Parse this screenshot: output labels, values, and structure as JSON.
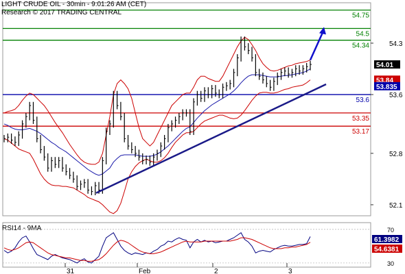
{
  "header": {
    "title": "LIGHT CRUDE OIL - 30min - 9:01:26 AM (CET)",
    "copyright": "Research © 2017 TRADING CENTRAL"
  },
  "rsi": {
    "title": "RSI14 - 9MA",
    "value_label": "61.3982",
    "ma_label": "54.6381"
  },
  "chart_data": {
    "type": "line",
    "instrument": "LIGHT CRUDE OIL",
    "timeframe": "30min",
    "y_ticks": [
      "54.3",
      "53.6",
      "52.8",
      "52.1"
    ],
    "x_ticks": [
      "31",
      "Feb",
      "2",
      "3"
    ],
    "ylim": [
      51.95,
      54.85
    ],
    "levels": [
      {
        "value": 54.75,
        "label": "54.75",
        "color": "#008000"
      },
      {
        "value": 54.5,
        "label": "54.5",
        "color": "#008000"
      },
      {
        "value": 54.34,
        "label": "54.34",
        "color": "#008000"
      },
      {
        "value": 53.6,
        "label": "53.6",
        "color": "#0000aa"
      },
      {
        "value": 53.35,
        "label": "53.35",
        "color": "#cc0000"
      },
      {
        "value": 53.17,
        "label": "53.17",
        "color": "#cc0000"
      }
    ],
    "price_tags": [
      {
        "value": 54.01,
        "label": "54.01",
        "bg": "#000000",
        "fg": "#ffffff"
      },
      {
        "value": 53.84,
        "label": "53.84",
        "bg": "#cc0000",
        "fg": "#ffffff"
      },
      {
        "value": 53.835,
        "label": "53.835",
        "bg": "#0000aa",
        "fg": "#ffffff"
      }
    ],
    "trendline": {
      "start": 52.26,
      "end": 53.74
    },
    "forecast_arrow": {
      "from": 54.07,
      "to": 54.52
    },
    "series": [
      {
        "kind": "price",
        "color": "#000000",
        "values": [
          53.0,
          53.02,
          52.98,
          52.95,
          53.05,
          53.2,
          53.3,
          53.45,
          53.25,
          53.0,
          52.85,
          52.75,
          52.6,
          52.7,
          52.65,
          52.7,
          52.6,
          52.55,
          52.5,
          52.45,
          52.35,
          52.38,
          52.4,
          52.3,
          52.28,
          52.36,
          52.3,
          52.7,
          53.1,
          53.2,
          53.6,
          53.45,
          53.3,
          53.0,
          52.9,
          52.85,
          52.8,
          52.75,
          52.7,
          52.72,
          52.68,
          52.75,
          52.8,
          52.9,
          53.0,
          53.15,
          53.2,
          53.25,
          53.3,
          53.35,
          53.35,
          53.1,
          53.5,
          53.6,
          53.55,
          53.65,
          53.6,
          53.68,
          53.62,
          53.6,
          53.7,
          53.72,
          53.75,
          53.9,
          54.1,
          54.34,
          54.25,
          54.2,
          54.1,
          53.9,
          53.85,
          53.8,
          53.75,
          53.7,
          53.78,
          53.85,
          53.9,
          53.92,
          53.88,
          53.9,
          53.95,
          53.92,
          53.95,
          53.98,
          54.01
        ]
      },
      {
        "kind": "ma",
        "color": "#1a1aaa",
        "values": [
          53.2,
          53.18,
          53.15,
          53.13,
          53.12,
          53.12,
          53.13,
          53.14,
          53.12,
          53.1,
          53.07,
          53.03,
          52.99,
          52.95,
          52.92,
          52.88,
          52.85,
          52.82,
          52.78,
          52.74,
          52.7,
          52.66,
          52.62,
          52.58,
          52.55,
          52.52,
          52.5,
          52.52,
          52.56,
          52.6,
          52.68,
          52.73,
          52.77,
          52.78,
          52.78,
          52.78,
          52.78,
          52.77,
          52.76,
          52.76,
          52.76,
          52.77,
          52.79,
          52.82,
          52.86,
          52.9,
          52.95,
          53.0,
          53.05,
          53.1,
          53.14,
          53.16,
          53.22,
          53.28,
          53.33,
          53.38,
          53.42,
          53.46,
          53.49,
          53.52,
          53.55,
          53.58,
          53.61,
          53.65,
          53.7,
          53.76,
          53.81,
          53.85,
          53.87,
          53.87,
          53.87,
          53.86,
          53.85,
          53.84,
          53.84,
          53.84,
          53.85,
          53.86,
          53.86,
          53.87,
          53.88,
          53.89,
          53.9,
          53.92,
          53.95
        ]
      },
      {
        "kind": "band_upper",
        "color": "#cc0000",
        "values": [
          53.35,
          53.37,
          53.38,
          53.4,
          53.45,
          53.52,
          53.58,
          53.62,
          53.6,
          53.55,
          53.5,
          53.45,
          53.38,
          53.3,
          53.22,
          53.15,
          53.08,
          53.0,
          52.92,
          52.85,
          52.78,
          52.72,
          52.68,
          52.66,
          52.65,
          52.65,
          52.68,
          52.8,
          53.05,
          53.3,
          53.6,
          53.75,
          53.8,
          53.75,
          53.68,
          53.55,
          53.35,
          53.15,
          53.0,
          52.95,
          52.9,
          52.95,
          53.05,
          53.15,
          53.25,
          53.35,
          53.45,
          53.5,
          53.55,
          53.6,
          53.62,
          53.62,
          53.7,
          53.8,
          53.85,
          53.85,
          53.82,
          53.8,
          53.78,
          53.78,
          53.85,
          53.95,
          54.05,
          54.15,
          54.25,
          54.33,
          54.38,
          54.35,
          54.28,
          54.2,
          54.1,
          54.02,
          53.97,
          53.93,
          53.92,
          53.93,
          53.95,
          53.97,
          53.99,
          54.0,
          54.02,
          54.03,
          54.04,
          54.05,
          54.07
        ]
      },
      {
        "kind": "band_lower",
        "color": "#cc0000",
        "values": [
          53.0,
          52.98,
          52.94,
          52.9,
          52.86,
          52.84,
          52.82,
          52.8,
          52.72,
          52.62,
          52.52,
          52.45,
          52.4,
          52.37,
          52.36,
          52.36,
          52.35,
          52.35,
          52.34,
          52.33,
          52.3,
          52.27,
          52.24,
          52.2,
          52.18,
          52.16,
          52.14,
          52.1,
          52.05,
          52.0,
          51.98,
          52.02,
          52.12,
          52.28,
          52.45,
          52.55,
          52.62,
          52.67,
          52.7,
          52.72,
          52.7,
          52.68,
          52.68,
          52.7,
          52.74,
          52.8,
          52.88,
          52.95,
          53.0,
          53.05,
          53.08,
          53.08,
          53.1,
          53.15,
          53.2,
          53.24,
          53.26,
          53.28,
          53.3,
          53.32,
          53.32,
          53.3,
          53.28,
          53.27,
          53.28,
          53.32,
          53.38,
          53.45,
          53.52,
          53.58,
          53.62,
          53.63,
          53.63,
          53.62,
          53.62,
          53.63,
          53.65,
          53.67,
          53.68,
          53.7,
          53.71,
          53.72,
          53.73,
          53.76,
          53.8
        ]
      }
    ],
    "rsi_ylim": [
      25,
      78
    ],
    "rsi_ticks": [
      "70",
      "30"
    ],
    "rsi_series": [
      {
        "name": "RSI14",
        "color": "#000080",
        "values": [
          45,
          42,
          44,
          48,
          55,
          60,
          62,
          55,
          47,
          40,
          38,
          36,
          34,
          38,
          40,
          38,
          36,
          35,
          34,
          32,
          30,
          33,
          35,
          31,
          30,
          34,
          38,
          50,
          60,
          63,
          66,
          58,
          50,
          45,
          42,
          40,
          42,
          41,
          40,
          42,
          41,
          44,
          46,
          50,
          52,
          56,
          55,
          58,
          60,
          58,
          57,
          48,
          55,
          58,
          55,
          57,
          55,
          56,
          54,
          55,
          56,
          56,
          58,
          60,
          63,
          66,
          58,
          55,
          50,
          42,
          44,
          45,
          44,
          43,
          46,
          48,
          50,
          51,
          50,
          50,
          51,
          52,
          52,
          53,
          61.3982
        ]
      },
      {
        "name": "9MA",
        "color": "#cc0000",
        "values": [
          48,
          46,
          45,
          46,
          48,
          51,
          54,
          55,
          54,
          51,
          48,
          45,
          42,
          40,
          39,
          38,
          37,
          36,
          36,
          35,
          34,
          33,
          33,
          32,
          32,
          33,
          34,
          37,
          41,
          46,
          51,
          55,
          57,
          56,
          54,
          51,
          48,
          45,
          43,
          42,
          41,
          41,
          42,
          43,
          45,
          47,
          49,
          51,
          53,
          55,
          56,
          55,
          55,
          55,
          55,
          56,
          56,
          56,
          56,
          56,
          56,
          56,
          56,
          57,
          58,
          60,
          60,
          59,
          58,
          56,
          54,
          52,
          50,
          48,
          47,
          47,
          47,
          48,
          48,
          49,
          49,
          50,
          51,
          52,
          54.6381
        ]
      }
    ]
  }
}
